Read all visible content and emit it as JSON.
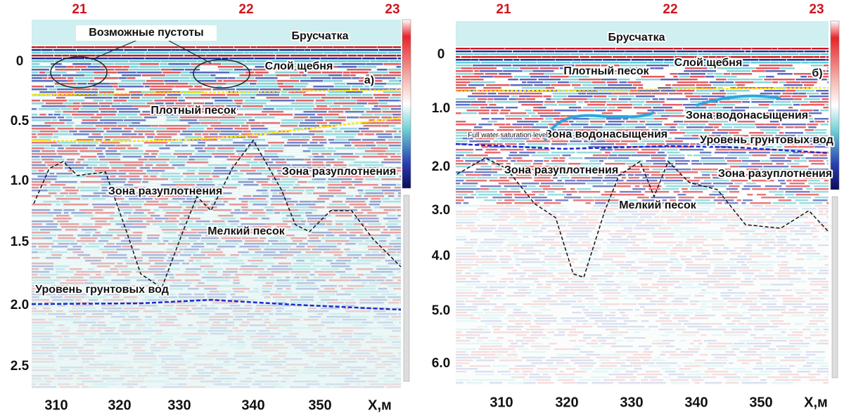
{
  "panels": [
    {
      "markers": [
        "21",
        "22",
        "23"
      ],
      "y_ticks": [
        "0",
        "0.5",
        "1.0",
        "1.5",
        "2.0",
        "2.5"
      ],
      "x_ticks": [
        "310",
        "320",
        "330",
        "340",
        "350"
      ],
      "axis_label": "X,м",
      "annotations": [
        "Возможные пустоты",
        "Брусчатка",
        "Слой щебня",
        "а)",
        "Плотный песок",
        "Зона разуплотнения",
        "Зона разуплотнения",
        "Мелкий песок",
        "Уровень грунтовых вод"
      ]
    },
    {
      "markers": [
        "21",
        "22",
        "23"
      ],
      "y_ticks": [
        "0",
        "1.0",
        "2.0",
        "3.0",
        "4.0",
        "5.0",
        "6.0"
      ],
      "x_ticks": [
        "310",
        "320",
        "330",
        "340",
        "350"
      ],
      "axis_label": "X,м",
      "annotations": [
        "Брусчатка",
        "Слой щебня",
        "Плотный песок",
        "б)",
        "Зона водонасыщения",
        "Зона водонасыщения",
        "Full water saturation level",
        "Уровень грунтовых вод",
        "Зона разуплотнения",
        "Зона разуплотнения",
        "Мелкий песок"
      ]
    }
  ]
}
